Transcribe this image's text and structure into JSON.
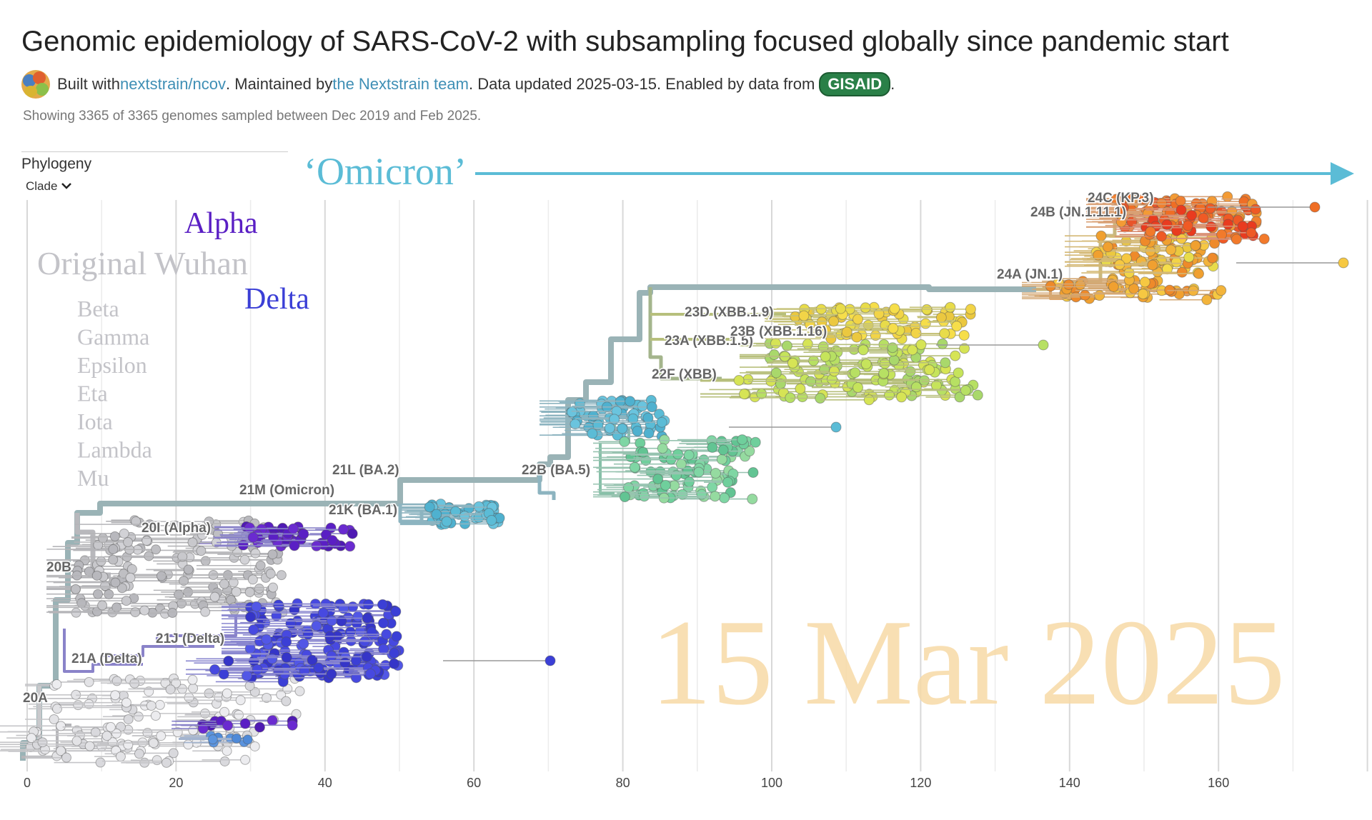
{
  "header": {
    "title": "Genomic epidemiology of SARS-CoV-2 with subsampling focused globally since pandemic start",
    "built_with": "Built with ",
    "repo_link": "nextstrain/ncov",
    "maintained_by": ". Maintained by ",
    "team_link": "the Nextstrain team",
    "updated": ". Data updated 2025-03-15. Enabled by data from ",
    "gisaid": "GISAID",
    "period": "."
  },
  "summary": "Showing 3365 of 3365 genomes sampled between Dec 2019 and Feb 2025.",
  "panel": {
    "title": "Phylogeny",
    "color_by": "Clade",
    "chevron_icon": "chevron-down-icon"
  },
  "annotations": {
    "omicron": "‘Omicron’",
    "alpha": "Alpha",
    "original": "Original Wuhan",
    "delta": "Delta",
    "others": [
      "Beta",
      "Gamma",
      "Epsilon",
      "Eta",
      "Iota",
      "Lambda",
      "Mu"
    ],
    "watermark": "15 Mar 2025"
  },
  "colors": {
    "omicron_arrow": "#5bbcd6",
    "alpha": "#5a1fc4",
    "delta": "#3b3fd6",
    "other_variants": "#bcbcc4",
    "watermark": "#f7d9a6"
  },
  "axis": {
    "ticks": [
      "0",
      "20",
      "40",
      "60",
      "80",
      "100",
      "120",
      "140",
      "160"
    ],
    "tick_values": [
      0,
      20,
      40,
      60,
      80,
      100,
      120,
      140,
      160
    ]
  },
  "clades": [
    {
      "label": "24C (KP.3)"
    },
    {
      "label": "24B (JN.1.11.1)"
    },
    {
      "label": "24A (JN.1)"
    },
    {
      "label": "23D (XBB.1.9)"
    },
    {
      "label": "23A (XBB.1.5)"
    },
    {
      "label": "23B (XBB.1.16)"
    },
    {
      "label": "22F (XBB)"
    },
    {
      "label": "22B (BA.5)"
    },
    {
      "label": "21L (BA.2)"
    },
    {
      "label": "21M (Omicron)"
    },
    {
      "label": "21K (BA.1)"
    },
    {
      "label": "20I (Alpha)"
    },
    {
      "label": "20B"
    },
    {
      "label": "21J (Delta)"
    },
    {
      "label": "21A (Delta)"
    },
    {
      "label": "20A"
    }
  ]
}
